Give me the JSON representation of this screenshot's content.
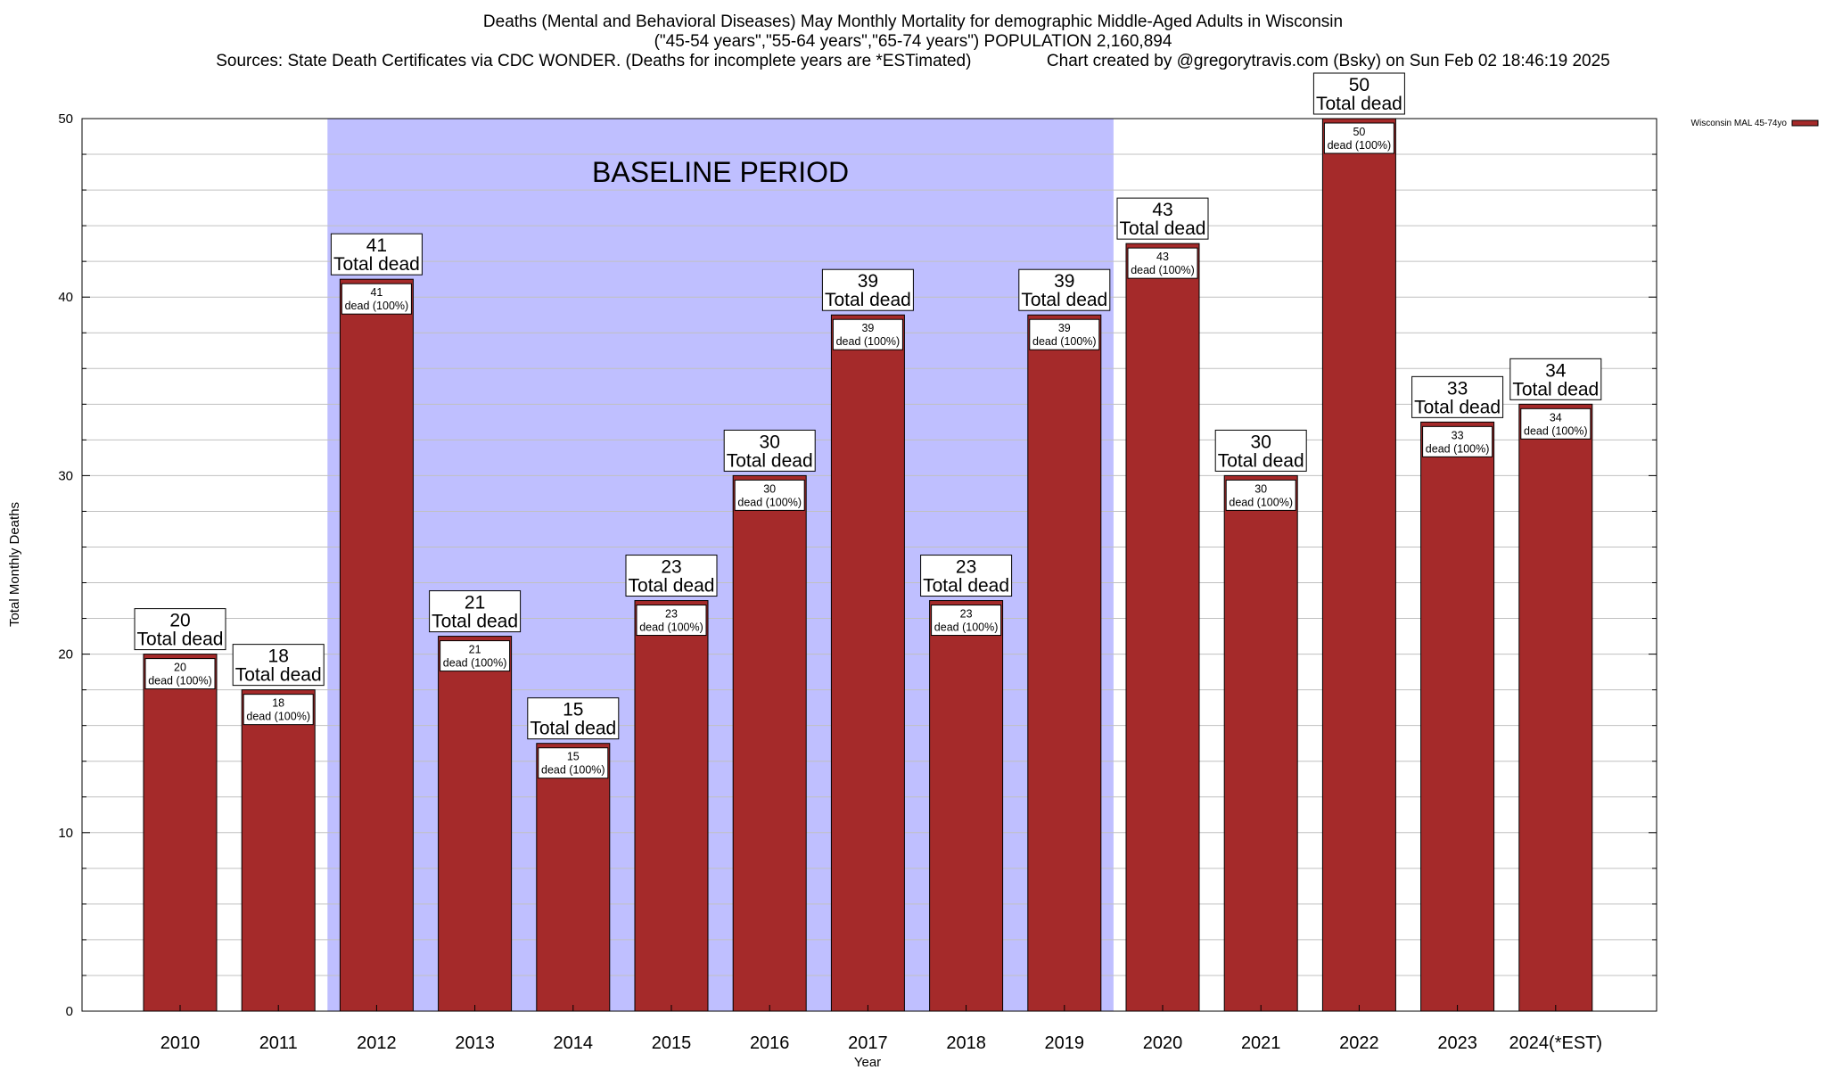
{
  "header": {
    "title_line1": "Deaths (Mental and Behavioral Diseases) May Monthly Mortality for demographic Middle-Aged Adults in Wisconsin",
    "title_line2": "(\"45-54 years\",\"55-64 years\",\"65-74 years\") POPULATION 2,160,894",
    "sources": "Sources: State Death Certificates via CDC WONDER. (Deaths for incomplete years are *ESTimated)",
    "credit": "Chart created by @gregorytravis.com (Bsky) on Sun Feb 02 18:46:19 2025"
  },
  "chart_data": {
    "type": "bar",
    "categories": [
      "2010",
      "2011",
      "2012",
      "2013",
      "2014",
      "2015",
      "2016",
      "2017",
      "2018",
      "2019",
      "2020",
      "2021",
      "2022",
      "2023",
      "2024(*EST)"
    ],
    "series": [
      {
        "name": "Wisconsin MAL 45-74yo",
        "values": [
          20,
          18,
          41,
          21,
          15,
          23,
          30,
          39,
          23,
          39,
          43,
          30,
          50,
          33,
          34
        ]
      }
    ],
    "xlabel": "Year",
    "ylabel": "Total Monthly Deaths",
    "ylim": [
      0,
      50
    ],
    "yticks": [
      0,
      10,
      20,
      30,
      40,
      50
    ],
    "grid": true,
    "legend_position": "top-right",
    "bar_total_label": "Total dead",
    "bar_segment_label": "dead (100%)",
    "baseline_region": {
      "label": "BASELINE PERIOD",
      "from": "2012",
      "to": "2019"
    },
    "colors": {
      "bar": "#a52a2a",
      "baseline": "#bfbfff",
      "grid": "#c0c0c0"
    }
  }
}
